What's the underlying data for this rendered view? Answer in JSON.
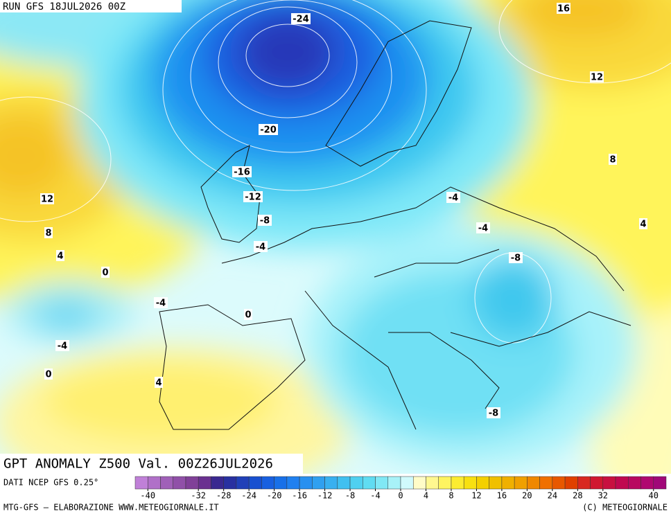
{
  "header": {
    "run": "RUN GFS 18JUL2026 00Z"
  },
  "map": {
    "title": "GPT ANOMALY Z500 Val. 00Z26JUL2026",
    "contour_labels": [
      -24,
      16,
      12,
      -20,
      -16,
      8,
      12,
      -12,
      -4,
      -8,
      -4,
      8,
      4,
      -4,
      4,
      -8,
      0,
      -4,
      0,
      -4,
      0,
      4,
      -8
    ]
  },
  "legend": {
    "source": "DATI NCEP GFS 0.25°",
    "ticks": [
      -40,
      -32,
      -28,
      -24,
      -20,
      -16,
      -12,
      -8,
      -4,
      0,
      4,
      8,
      12,
      16,
      20,
      24,
      28,
      32,
      40
    ],
    "range": [
      -42,
      42
    ],
    "colors": [
      "#c080d8",
      "#b070c8",
      "#a060b8",
      "#9050a8",
      "#804098",
      "#6a3090",
      "#3a2890",
      "#2830a0",
      "#2040b8",
      "#1850d0",
      "#1860e0",
      "#1870e8",
      "#2080f0",
      "#2890f0",
      "#30a0f0",
      "#38b0f0",
      "#40c0f0",
      "#50d0f0",
      "#60dcf2",
      "#80e8f5",
      "#a8f2f8",
      "#d0fafc",
      "#fffcc8",
      "#fff890",
      "#fff460",
      "#fcec30",
      "#f8e010",
      "#f4d000",
      "#f0c000",
      "#f0b000",
      "#f0a000",
      "#f08800",
      "#f07000",
      "#e85800",
      "#e04000",
      "#d82820",
      "#d01830",
      "#c81040",
      "#c00850",
      "#b80860",
      "#b00870",
      "#a00878"
    ]
  },
  "footer": {
    "left": "MTG-GFS — ELABORAZIONE WWW.METEOGIORNALE.IT",
    "right": "(C) METEOGIORNALE"
  }
}
